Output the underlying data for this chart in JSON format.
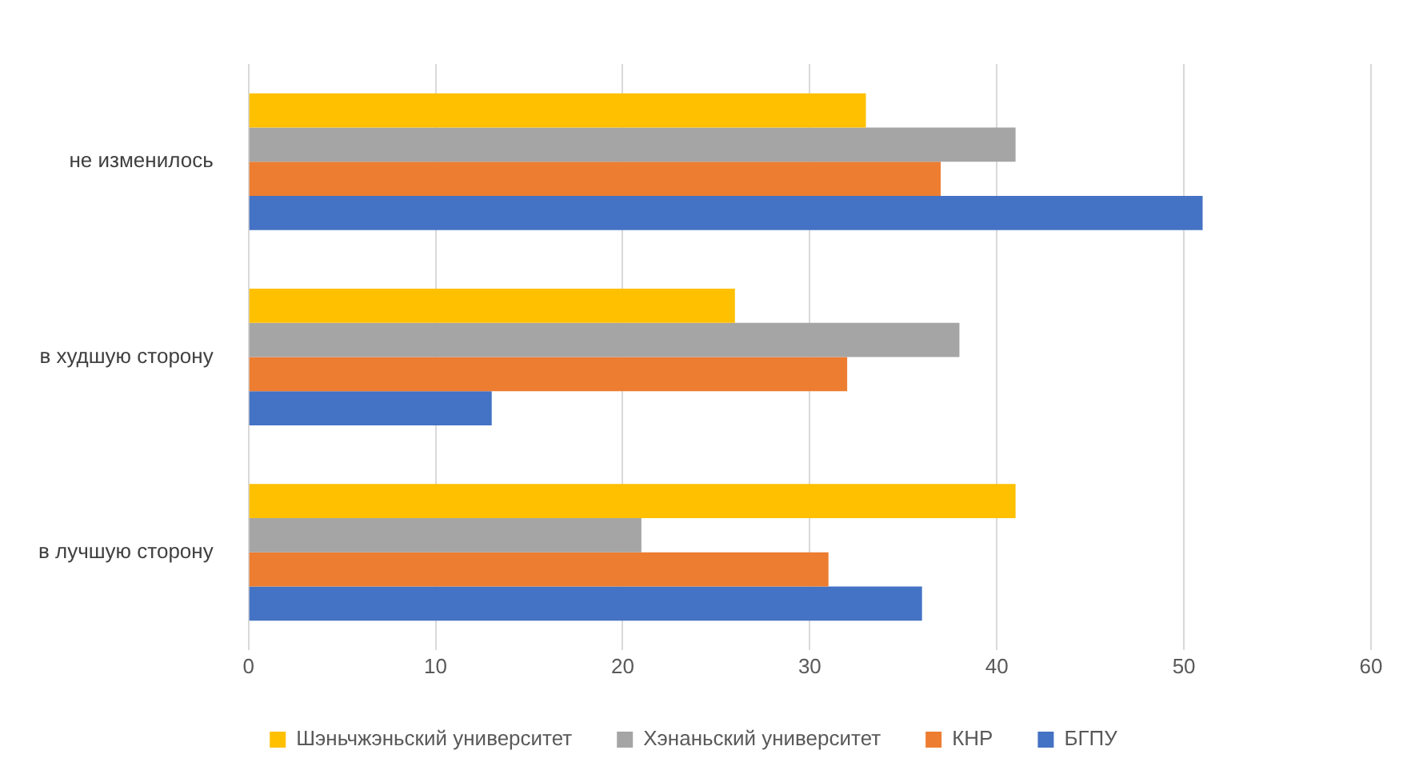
{
  "chart_data": {
    "type": "bar",
    "orientation": "horizontal",
    "categories": [
      "не изменилось",
      "в худшую сторону",
      "в лучшую сторону"
    ],
    "series": [
      {
        "name": "Шэньчжэньский университет",
        "color": "#ffc000",
        "values": [
          33,
          26,
          41
        ]
      },
      {
        "name": "Хэнаньский университет",
        "color": "#a5a5a5",
        "values": [
          41,
          38,
          21
        ]
      },
      {
        "name": "КНР",
        "color": "#ed7d31",
        "values": [
          37,
          32,
          31
        ]
      },
      {
        "name": "БГПУ",
        "color": "#4472c4",
        "values": [
          51,
          13,
          36
        ]
      }
    ],
    "xlim": [
      0,
      60
    ],
    "xticks": [
      0,
      10,
      20,
      30,
      40,
      50,
      60
    ],
    "grid": "x",
    "legend": "bottom"
  }
}
